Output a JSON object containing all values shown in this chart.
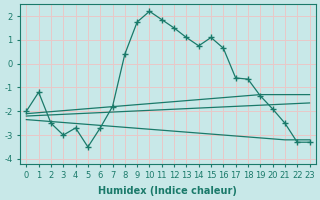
{
  "xlabel": "Humidex (Indice chaleur)",
  "background_color": "#c8e8e8",
  "grid_color": "#e8c8c8",
  "line_color": "#1a7a6a",
  "xlim": [
    -0.5,
    23.5
  ],
  "ylim": [
    -4.2,
    2.5
  ],
  "yticks": [
    -4,
    -3,
    -2,
    -1,
    0,
    1,
    2
  ],
  "xticks": [
    0,
    1,
    2,
    3,
    4,
    5,
    6,
    7,
    8,
    9,
    10,
    11,
    12,
    13,
    14,
    15,
    16,
    17,
    18,
    19,
    20,
    21,
    22,
    23
  ],
  "main_x": [
    0,
    1,
    2,
    3,
    4,
    5,
    6,
    7,
    8,
    9,
    10,
    11,
    12,
    13,
    14,
    15,
    16,
    17,
    18,
    19,
    20,
    21,
    22,
    23
  ],
  "main_y": [
    -2.0,
    -1.2,
    -2.5,
    -3.0,
    -2.7,
    -3.5,
    -2.7,
    -1.8,
    0.4,
    1.75,
    2.2,
    1.85,
    1.5,
    1.1,
    0.75,
    1.1,
    0.65,
    -0.6,
    -0.65,
    -1.35,
    -1.9,
    -2.5,
    -3.3,
    -3.3
  ],
  "line1_x": [
    0,
    19,
    23
  ],
  "line1_y": [
    -2.1,
    -1.3,
    -1.3
  ],
  "line2_x": [
    0,
    23
  ],
  "line2_y": [
    -2.2,
    -1.65
  ],
  "line3_x": [
    0,
    21,
    23
  ],
  "line3_y": [
    -2.35,
    -3.2,
    -3.2
  ]
}
